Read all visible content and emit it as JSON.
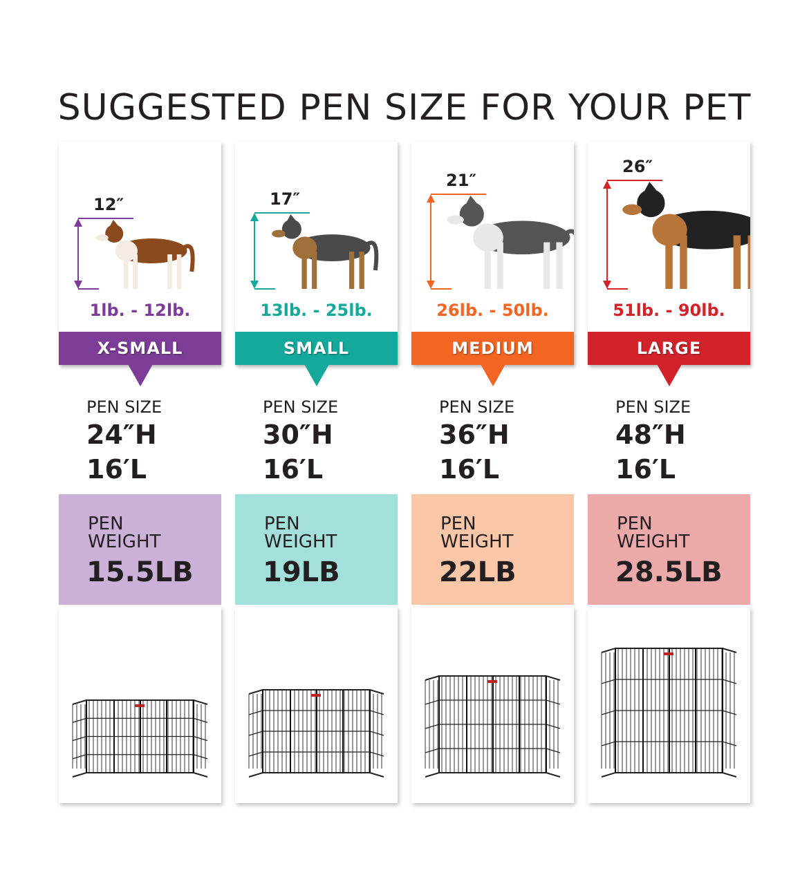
{
  "title": "SUGGESTED PEN SIZE FOR YOUR PET",
  "sizes": [
    {
      "name": "X-SMALL",
      "dog_height": "12″",
      "weight_range": "1lb. - 12lb.",
      "pen_size_label": "PEN SIZE",
      "pen_height": "24″H",
      "pen_length": "16′L",
      "pen_weight_label": "PEN WEIGHT",
      "pen_weight": "15.5LB",
      "color": "#7d3c98",
      "light_color": "#cbb0d8",
      "dog": "chihuahua-image",
      "pen": "exercise-pen-image"
    },
    {
      "name": "SMALL",
      "dog_height": "17″",
      "weight_range": "13lb. - 25lb.",
      "pen_size_label": "PEN SIZE",
      "pen_height": "30″H",
      "pen_length": "16′L",
      "pen_weight_label": "PEN WEIGHT",
      "pen_weight": "19LB",
      "color": "#15a99b",
      "light_color": "#a3e0dc",
      "dog": "yorkshire-terrier-image",
      "pen": "exercise-pen-image"
    },
    {
      "name": "MEDIUM",
      "dog_height": "21″",
      "weight_range": "26lb. - 50lb.",
      "pen_size_label": "PEN SIZE",
      "pen_height": "36″H",
      "pen_length": "16′L",
      "pen_weight_label": "PEN WEIGHT",
      "pen_weight": "22LB",
      "color": "#f26522",
      "light_color": "#f9c6a8",
      "dog": "husky-image",
      "pen": "exercise-pen-image"
    },
    {
      "name": "LARGE",
      "dog_height": "26″",
      "weight_range": "51lb. - 90lb.",
      "pen_size_label": "PEN SIZE",
      "pen_height": "48″H",
      "pen_length": "16′L",
      "pen_weight_label": "PEN WEIGHT",
      "pen_weight": "28.5LB",
      "color": "#d2232a",
      "light_color": "#eca9a9",
      "dog": "german-shepherd-image",
      "pen": "exercise-pen-image"
    }
  ]
}
